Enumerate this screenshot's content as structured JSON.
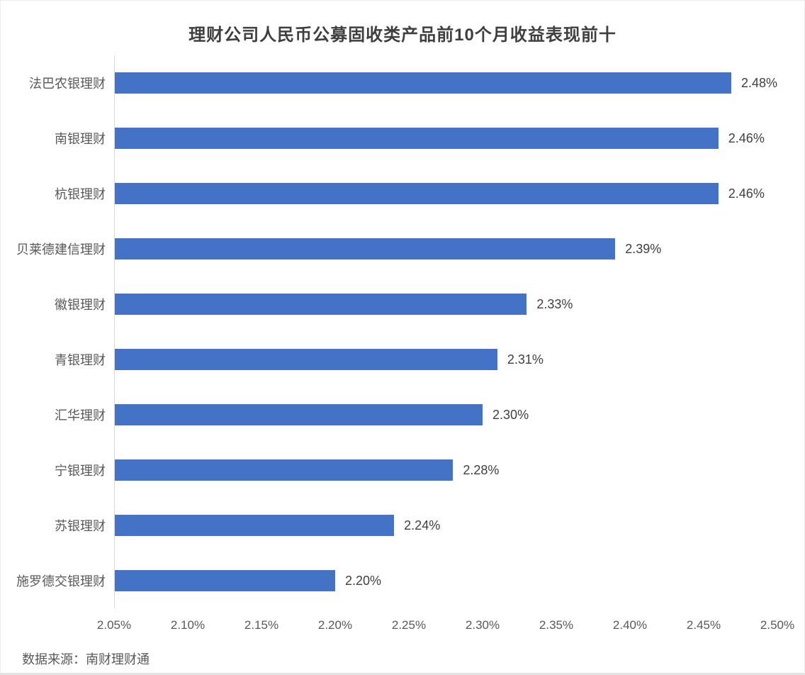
{
  "title": "理财公司人民币公募固收类产品前10个月收益表现前十",
  "source": "数据来源：南财理财通",
  "colors": {
    "bar": "#4472c4",
    "axis_line": "#d9d9d9",
    "title_text": "#3f3f3f",
    "category_text": "#595959",
    "value_text": "#404040",
    "tick_text": "#595959",
    "background": "#ffffff"
  },
  "chart_data": {
    "type": "bar",
    "orientation": "horizontal",
    "title": "理财公司人民币公募固收类产品前10个月收益表现前十",
    "xlabel": "",
    "ylabel": "",
    "categories": [
      "法巴农银理财",
      "南银理财",
      "杭银理财",
      "贝莱德建信理财",
      "徽银理财",
      "青银理财",
      "汇华理财",
      "宁银理财",
      "苏银理财",
      "施罗德交银理财"
    ],
    "values": [
      2.48,
      2.46,
      2.46,
      2.39,
      2.33,
      2.31,
      2.3,
      2.28,
      2.24,
      2.2
    ],
    "value_labels": [
      "2.48%",
      "2.46%",
      "2.46%",
      "2.39%",
      "2.33%",
      "2.31%",
      "2.30%",
      "2.28%",
      "2.24%",
      "2.20%"
    ],
    "xlim": [
      2.05,
      2.5
    ],
    "x_ticks": [
      "2.05%",
      "2.10%",
      "2.15%",
      "2.20%",
      "2.25%",
      "2.30%",
      "2.35%",
      "2.40%",
      "2.45%",
      "2.50%"
    ],
    "grid": false,
    "legend": false,
    "data_labels": true
  }
}
